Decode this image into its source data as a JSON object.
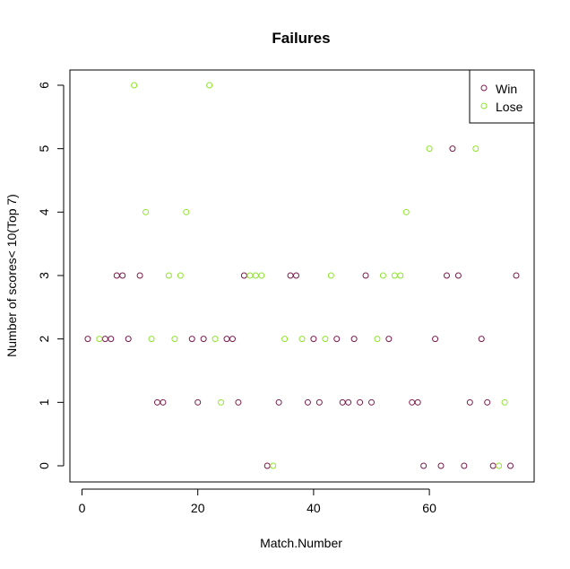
{
  "chart_data": {
    "type": "scatter",
    "title": "Failures",
    "xlabel": "Match.Number",
    "ylabel": "Number of scores< 10(Top 7)",
    "xlim": [
      0,
      76
    ],
    "ylim": [
      0,
      6
    ],
    "x_ticks": [
      0,
      20,
      40,
      60
    ],
    "y_ticks": [
      0,
      1,
      2,
      3,
      4,
      5,
      6
    ],
    "grid": false,
    "legend_position": "top-right",
    "series": [
      {
        "name": "Win",
        "color": "#7a1a4a",
        "points": [
          [
            1,
            2
          ],
          [
            4,
            2
          ],
          [
            5,
            2
          ],
          [
            6,
            3
          ],
          [
            7,
            3
          ],
          [
            8,
            2
          ],
          [
            10,
            3
          ],
          [
            13,
            1
          ],
          [
            14,
            1
          ],
          [
            19,
            2
          ],
          [
            20,
            1
          ],
          [
            21,
            2
          ],
          [
            25,
            2
          ],
          [
            26,
            2
          ],
          [
            27,
            1
          ],
          [
            28,
            3
          ],
          [
            32,
            0
          ],
          [
            34,
            1
          ],
          [
            36,
            3
          ],
          [
            37,
            3
          ],
          [
            39,
            1
          ],
          [
            40,
            2
          ],
          [
            41,
            1
          ],
          [
            44,
            2
          ],
          [
            45,
            1
          ],
          [
            46,
            1
          ],
          [
            47,
            2
          ],
          [
            48,
            1
          ],
          [
            49,
            3
          ],
          [
            50,
            1
          ],
          [
            53,
            2
          ],
          [
            57,
            1
          ],
          [
            58,
            1
          ],
          [
            59,
            0
          ],
          [
            61,
            2
          ],
          [
            62,
            0
          ],
          [
            63,
            3
          ],
          [
            64,
            5
          ],
          [
            65,
            3
          ],
          [
            66,
            0
          ],
          [
            67,
            1
          ],
          [
            69,
            2
          ],
          [
            70,
            1
          ],
          [
            71,
            0
          ],
          [
            74,
            0
          ],
          [
            75,
            3
          ]
        ]
      },
      {
        "name": "Lose",
        "color": "#8ee52a",
        "points": [
          [
            3,
            2
          ],
          [
            9,
            6
          ],
          [
            11,
            4
          ],
          [
            12,
            2
          ],
          [
            15,
            3
          ],
          [
            16,
            2
          ],
          [
            17,
            3
          ],
          [
            18,
            4
          ],
          [
            22,
            6
          ],
          [
            23,
            2
          ],
          [
            24,
            1
          ],
          [
            29,
            3
          ],
          [
            30,
            3
          ],
          [
            31,
            3
          ],
          [
            33,
            0
          ],
          [
            35,
            2
          ],
          [
            38,
            2
          ],
          [
            42,
            2
          ],
          [
            43,
            3
          ],
          [
            51,
            2
          ],
          [
            52,
            3
          ],
          [
            54,
            3
          ],
          [
            55,
            3
          ],
          [
            56,
            4
          ],
          [
            60,
            5
          ],
          [
            68,
            5
          ],
          [
            72,
            0
          ],
          [
            73,
            1
          ]
        ]
      }
    ]
  }
}
